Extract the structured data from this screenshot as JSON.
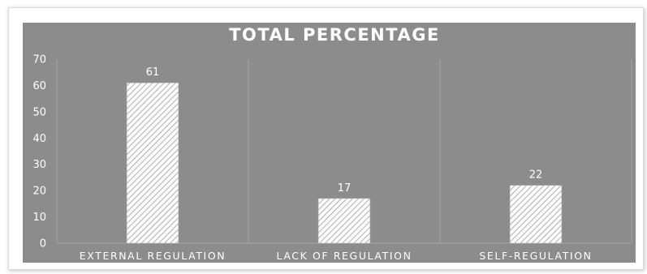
{
  "chart_data": {
    "type": "bar",
    "title": "TOTAL PERCENTAGE",
    "categories": [
      "EXTERNAL REGULATION",
      "LACK OF REGULATION",
      "SELF-REGULATION"
    ],
    "values": [
      61,
      17,
      22
    ],
    "data_labels": [
      "61",
      "17",
      "22"
    ],
    "ylim": [
      0,
      70
    ],
    "yticks": [
      0,
      10,
      20,
      30,
      40,
      50,
      60,
      70
    ],
    "ytick_labels": [
      "0",
      "10",
      "20",
      "30",
      "40",
      "50",
      "60",
      "70"
    ],
    "xlabel": "",
    "ylabel": "",
    "grid": false,
    "legend": "none",
    "colors": {
      "plot_background": "#8c8c8c",
      "bar_fill": "#ffffff",
      "bar_hatch": "#8a8a8a",
      "text": "#ffffff",
      "separator": "#a6a6a6"
    }
  }
}
